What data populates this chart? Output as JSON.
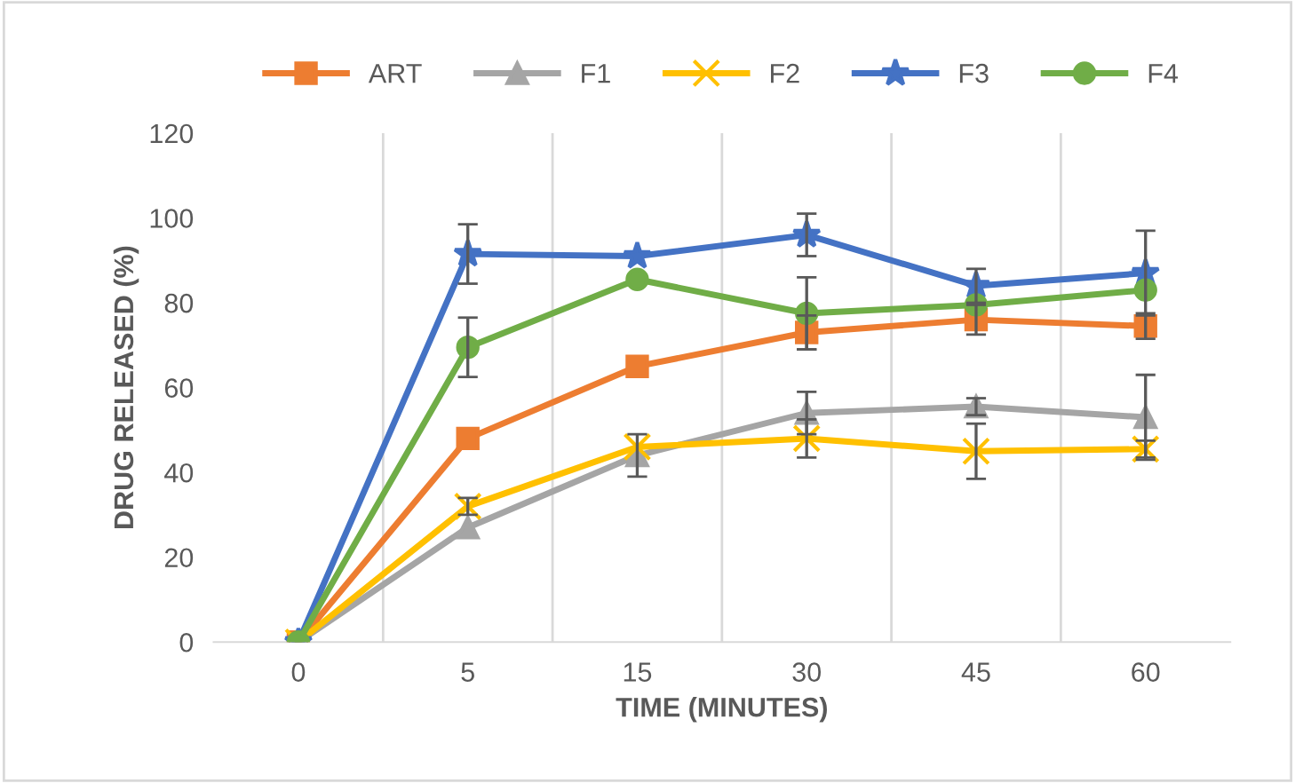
{
  "chart_data": {
    "type": "line",
    "xlabel": "TIME (MINUTES)",
    "ylabel": "DRUG RELEASED (%)",
    "categories": [
      "0",
      "5",
      "15",
      "30",
      "45",
      "60"
    ],
    "series": [
      {
        "name": "ART",
        "color": "#ed7d31",
        "marker": "square",
        "values": [
          0,
          48,
          65,
          73,
          76,
          74.5
        ],
        "errors": [
          null,
          null,
          null,
          4,
          3.5,
          3
        ]
      },
      {
        "name": "F1",
        "color": "#a5a5a5",
        "marker": "triangle",
        "values": [
          0,
          27,
          44,
          54,
          55.5,
          53
        ],
        "errors": [
          null,
          null,
          5,
          5,
          2,
          10
        ]
      },
      {
        "name": "F2",
        "color": "#ffc000",
        "marker": "cross",
        "values": [
          0,
          32,
          46,
          48,
          45,
          45.5
        ],
        "errors": [
          null,
          2,
          null,
          4.5,
          6.5,
          2
        ]
      },
      {
        "name": "F3",
        "color": "#4472c4",
        "marker": "star",
        "values": [
          0,
          91.5,
          91,
          96,
          84,
          87
        ],
        "errors": [
          null,
          7,
          null,
          5,
          4,
          10
        ]
      },
      {
        "name": "F4",
        "color": "#70ad47",
        "marker": "circle",
        "values": [
          0,
          69.5,
          85.5,
          77.5,
          79.5,
          83
        ],
        "errors": [
          null,
          7,
          null,
          8.5,
          null,
          null
        ]
      }
    ],
    "ylim": [
      0,
      120
    ],
    "yticks": [
      0,
      20,
      40,
      60,
      80,
      100,
      120
    ],
    "grid": "x",
    "legend": "top"
  }
}
